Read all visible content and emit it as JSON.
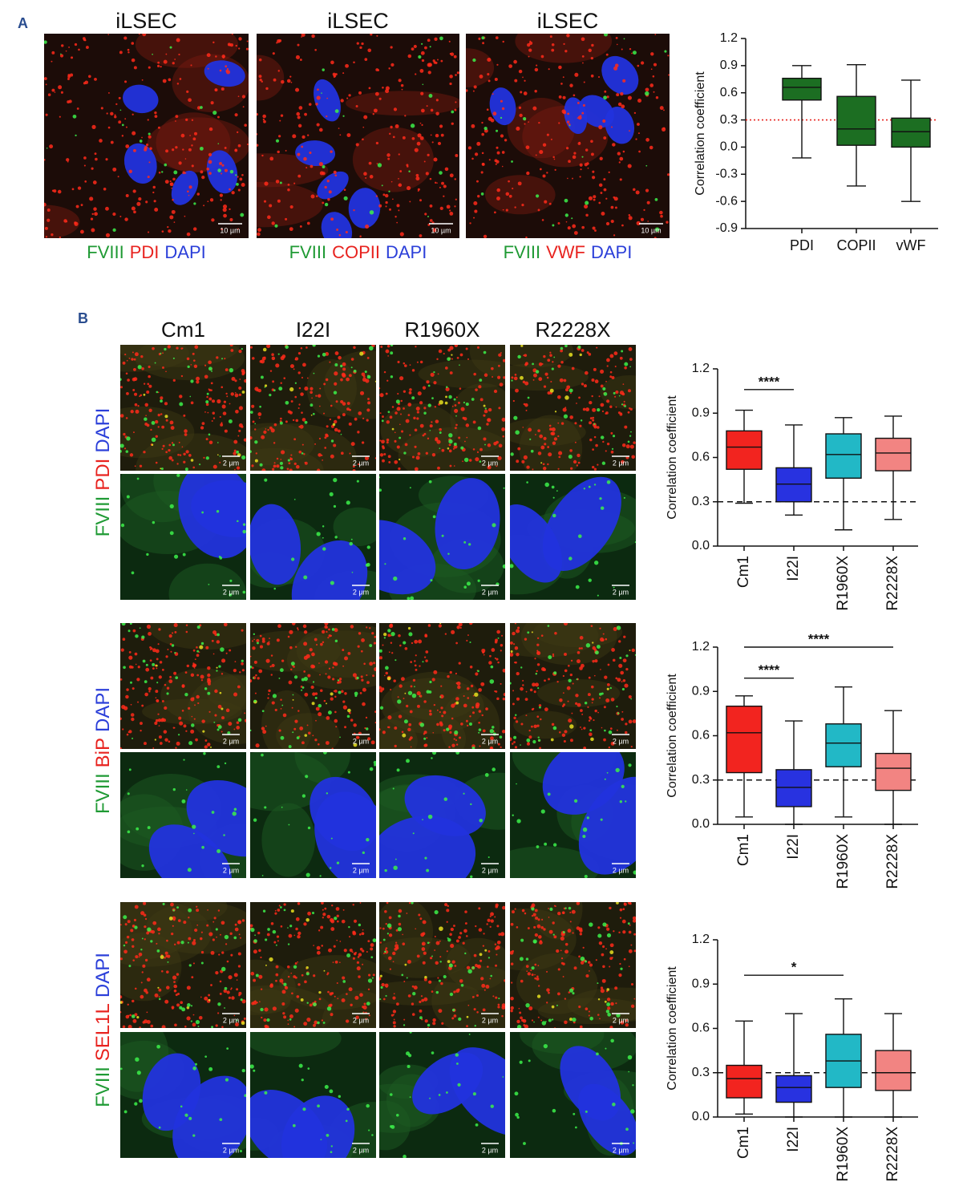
{
  "panel_a": {
    "label": "A",
    "scale_bar": "10 µm",
    "stain_colors": [
      "#1f9a34",
      "#e8231f",
      "#2b3fd9"
    ],
    "images": [
      {
        "title": "iLSEC",
        "stain": [
          "FVIII",
          "PDI",
          "DAPI"
        ]
      },
      {
        "title": "iLSEC",
        "stain": [
          "FVIII",
          "COPII",
          "DAPI"
        ]
      },
      {
        "title": "iLSEC",
        "stain": [
          "FVIII",
          "VWF",
          "DAPI"
        ]
      }
    ]
  },
  "panel_b": {
    "label": "B",
    "scale_bar": "2 µm",
    "stain_colors": [
      "#1f9a34",
      "#e8231f",
      "#2b3fd9"
    ],
    "columns": [
      "Cm1",
      "I22I",
      "R1960X",
      "R2228X"
    ],
    "rows": [
      [
        "FVIII",
        "PDI",
        "DAPI"
      ],
      [
        "FVIII",
        "BiP",
        "DAPI"
      ],
      [
        "FVIII",
        "SEL1L",
        "DAPI"
      ]
    ]
  },
  "chart_data": [
    {
      "type": "box",
      "y_label": "Correlation coefficient",
      "categories": [
        "PDI",
        "COPII",
        "vWF"
      ],
      "colors": [
        "#1c6e22",
        "#1c6e22",
        "#1c6e22"
      ],
      "boxes": [
        {
          "min": -0.12,
          "q1": 0.52,
          "median": 0.66,
          "q3": 0.76,
          "max": 0.9
        },
        {
          "min": -0.43,
          "q1": 0.02,
          "median": 0.2,
          "q3": 0.56,
          "max": 0.91
        },
        {
          "min": -0.6,
          "q1": 0.0,
          "median": 0.17,
          "q3": 0.32,
          "max": 0.74
        }
      ],
      "ylim": [
        -0.9,
        1.2
      ],
      "yticks": [
        -0.9,
        -0.6,
        -0.3,
        {
          "value": 0,
          "label": "0.0"
        },
        0.3,
        0.6,
        0.9,
        1.2
      ],
      "reference_line": 0.3,
      "reference_color": "#e8231f",
      "reference_style": "dotted",
      "annotations": []
    },
    {
      "type": "box",
      "y_label": "Correlation coefficient",
      "categories": [
        "Cm1",
        "I22I",
        "R1960X",
        "R2228X"
      ],
      "colors": [
        "#f2241f",
        "#2832e0",
        "#22b8c6",
        "#f28482"
      ],
      "boxes": [
        {
          "min": 0.29,
          "q1": 0.52,
          "median": 0.67,
          "q3": 0.78,
          "max": 0.92
        },
        {
          "min": 0.21,
          "q1": 0.3,
          "median": 0.42,
          "q3": 0.53,
          "max": 0.82
        },
        {
          "min": 0.11,
          "q1": 0.46,
          "median": 0.62,
          "q3": 0.76,
          "max": 0.87
        },
        {
          "min": 0.18,
          "q1": 0.51,
          "median": 0.63,
          "q3": 0.73,
          "max": 0.88
        }
      ],
      "ylim": [
        0,
        1.2
      ],
      "yticks": [
        {
          "value": 0,
          "label": "0.0"
        },
        0.3,
        0.6,
        0.9,
        1.2
      ],
      "reference_line": 0.3,
      "reference_color": "#111111",
      "reference_style": "dashed",
      "annotations": [
        {
          "text": "****",
          "between": [
            "Cm1",
            "I22I"
          ],
          "y": 1.06
        }
      ]
    },
    {
      "type": "box",
      "y_label": "Correlation coefficient",
      "categories": [
        "Cm1",
        "I22I",
        "R1960X",
        "R2228X"
      ],
      "colors": [
        "#f2241f",
        "#2832e0",
        "#22b8c6",
        "#f28482"
      ],
      "boxes": [
        {
          "min": 0.05,
          "q1": 0.35,
          "median": 0.62,
          "q3": 0.8,
          "max": 0.87
        },
        {
          "min": 0.0,
          "q1": 0.12,
          "median": 0.25,
          "q3": 0.37,
          "max": 0.7
        },
        {
          "min": 0.05,
          "q1": 0.39,
          "median": 0.55,
          "q3": 0.68,
          "max": 0.93
        },
        {
          "min": 0.0,
          "q1": 0.23,
          "median": 0.38,
          "q3": 0.48,
          "max": 0.77
        }
      ],
      "ylim": [
        0,
        1.2
      ],
      "yticks": [
        {
          "value": 0,
          "label": "0.0"
        },
        0.3,
        0.6,
        0.9,
        1.2
      ],
      "reference_line": 0.3,
      "reference_color": "#111111",
      "reference_style": "dashed",
      "annotations": [
        {
          "text": "****",
          "between": [
            "Cm1",
            "I22I"
          ],
          "y": 0.99
        },
        {
          "text": "****",
          "between": [
            "Cm1",
            "R2228X"
          ],
          "y": 1.2
        }
      ]
    },
    {
      "type": "box",
      "y_label": "Correlation coefficient",
      "categories": [
        "Cm1",
        "I22I",
        "R1960X",
        "R2228X"
      ],
      "colors": [
        "#f2241f",
        "#2832e0",
        "#22b8c6",
        "#f28482"
      ],
      "boxes": [
        {
          "min": 0.02,
          "q1": 0.13,
          "median": 0.26,
          "q3": 0.35,
          "max": 0.65
        },
        {
          "min": 0.0,
          "q1": 0.1,
          "median": 0.2,
          "q3": 0.28,
          "max": 0.7
        },
        {
          "min": 0.0,
          "q1": 0.2,
          "median": 0.38,
          "q3": 0.56,
          "max": 0.8
        },
        {
          "min": 0.0,
          "q1": 0.18,
          "median": 0.3,
          "q3": 0.45,
          "max": 0.7
        }
      ],
      "ylim": [
        0,
        1.2
      ],
      "yticks": [
        {
          "value": 0,
          "label": "0.0"
        },
        0.3,
        0.6,
        0.9,
        1.2
      ],
      "reference_line": 0.3,
      "reference_color": "#111111",
      "reference_style": "dashed",
      "annotations": [
        {
          "text": "*",
          "between": [
            "Cm1",
            "R1960X"
          ],
          "y": 0.96
        }
      ]
    }
  ]
}
